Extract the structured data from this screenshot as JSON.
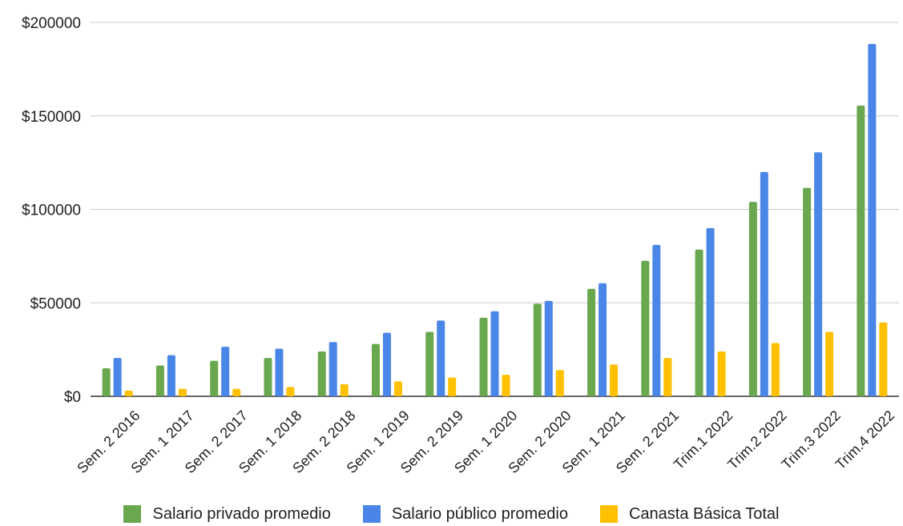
{
  "chart_data": {
    "type": "bar",
    "categories": [
      "Sem. 2 2016",
      "Sem. 1 2017",
      "Sem. 2 2017",
      "Sem. 1 2018",
      "Sem. 2 2018",
      "Sem. 1 2019",
      "Sem. 2 2019",
      "Sem. 1 2020",
      "Sem. 2 2020",
      "Sem. 1 2021",
      "Sem. 2 2021",
      "Trim.1 2022",
      "Trim.2 2022",
      "Trim.3 2022",
      "Trim.4 2022"
    ],
    "series": [
      {
        "name": "Salario privado promedio",
        "color": "#6aa84f",
        "values": [
          15000,
          16500,
          19000,
          20500,
          24000,
          28000,
          34500,
          42000,
          49500,
          57500,
          72500,
          78500,
          104000,
          111500,
          155500
        ]
      },
      {
        "name": "Salario público promedio",
        "color": "#4a86e8",
        "values": [
          20500,
          22000,
          26500,
          25500,
          29000,
          34000,
          40500,
          45500,
          51000,
          60500,
          81000,
          90000,
          120000,
          130500,
          188500
        ]
      },
      {
        "name": "Canasta Básica Total",
        "color": "#ffc000",
        "values": [
          3000,
          4000,
          4000,
          5000,
          6500,
          8000,
          10000,
          11500,
          14000,
          17000,
          20500,
          24000,
          28500,
          34500,
          39500
        ]
      }
    ],
    "yticks": [
      "$0",
      "$50000",
      "$100000",
      "$150000",
      "$200000"
    ],
    "ytick_values": [
      0,
      50000,
      100000,
      150000,
      200000
    ],
    "ylim": [
      0,
      200000
    ],
    "grid": true,
    "legend_position": "bottom"
  }
}
